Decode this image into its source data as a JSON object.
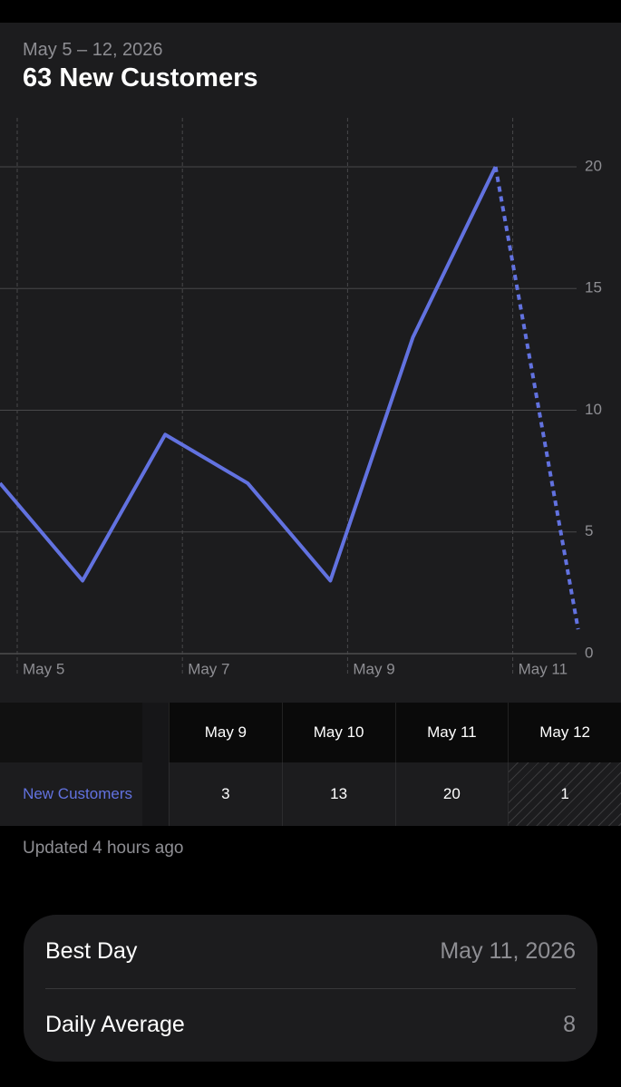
{
  "header": {
    "subtitle": "May 5 – 12, 2026",
    "title": "63 New Customers"
  },
  "chart_data": {
    "type": "line",
    "categories": [
      "May 5",
      null,
      "May 7",
      null,
      "May 9",
      null,
      "May 11",
      null
    ],
    "series": [
      {
        "name": "New Customers",
        "color": "#6272e0",
        "values": [
          7,
          3,
          9,
          7,
          3,
          13,
          20,
          1
        ]
      }
    ],
    "last_segment_dashed": true,
    "ylim": [
      0,
      20
    ],
    "yticks": [
      0,
      5,
      10,
      15,
      20
    ],
    "grid": true
  },
  "table": {
    "columns": [
      "May 9",
      "May 10",
      "May 11",
      "May 12"
    ],
    "row_label": "New Customers",
    "values": [
      "3",
      "13",
      "20",
      "1"
    ]
  },
  "footer": "Updated 4 hours ago",
  "summary": {
    "rows": [
      [
        "Best Day",
        "May 11, 2026"
      ],
      [
        "Daily Average",
        "8"
      ]
    ]
  }
}
